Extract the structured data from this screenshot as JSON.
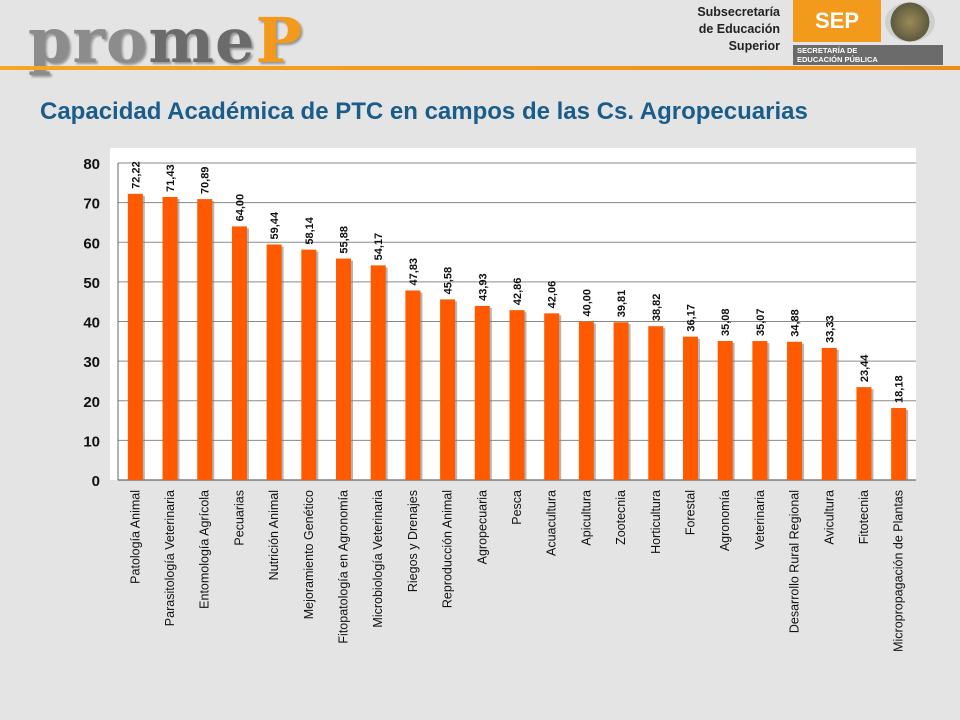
{
  "header": {
    "logo_part1": "pro",
    "logo_part2": "me",
    "logo_part3": "P",
    "subtitle_line1": "Subsecretaría",
    "subtitle_line2": "de Educación",
    "subtitle_line3": "Superior",
    "sep_label": "SEP",
    "sep_line1": "SECRETARÍA DE",
    "sep_line2": "EDUCACIÓN PÚBLICA"
  },
  "colors": {
    "bar": "#ff5a00",
    "title": "#1a5c8a",
    "accent": "#f39a1d"
  },
  "chart_data": {
    "type": "bar",
    "title": "Capacidad Académica de PTC en campos de las Cs. Agropecuarias",
    "xlabel": "",
    "ylabel": "",
    "ylim": [
      0,
      80
    ],
    "yticks": [
      "0",
      "10",
      "20",
      "30",
      "40",
      "50",
      "60",
      "70",
      "80"
    ],
    "grid": true,
    "categories": [
      "Patología Animal",
      "Parasitología Veterinaria",
      "Entomología Agrícola",
      "Pecuarias",
      "Nutrición Animal",
      "Mejoramiento Genético",
      "Fitopatología en Agronomía",
      "Microbiología Veterinaria",
      "Riegos y Drenajes",
      "Reproducción Animal",
      "Agropecuaria",
      "Pesca",
      "Acuacultura",
      "Apicultura",
      "Zootecnia",
      "Horticultura",
      "Forestal",
      "Agronomía",
      "Veterinaria",
      "Desarrollo Rural Regional",
      "Avicultura",
      "Fitotecnia",
      "Micropropagación de Plantas"
    ],
    "values": [
      72.22,
      71.43,
      70.89,
      64.0,
      59.44,
      58.14,
      55.88,
      54.17,
      47.83,
      45.58,
      43.93,
      42.86,
      42.06,
      40.0,
      39.81,
      38.82,
      36.17,
      35.08,
      35.07,
      34.88,
      33.33,
      23.44,
      18.18
    ],
    "data_labels": [
      "72,22",
      "71,43",
      "70,89",
      "64,00",
      "59,44",
      "58,14",
      "55,88",
      "54,17",
      "47,83",
      "45,58",
      "43,93",
      "42,86",
      "42,06",
      "40,00",
      "39,81",
      "38,82",
      "36,17",
      "35,08",
      "35,07",
      "34,88",
      "33,33",
      "23,44",
      "18,18"
    ]
  }
}
